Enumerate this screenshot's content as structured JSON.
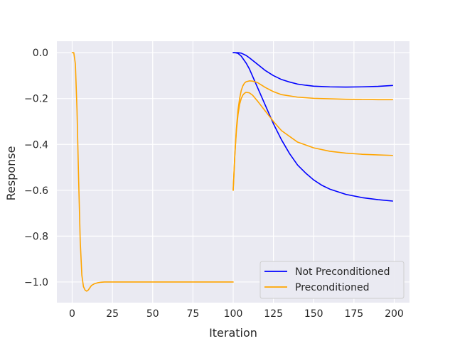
{
  "chart_data": {
    "type": "line",
    "title": "",
    "xlabel": "Iteration",
    "ylabel": "Response",
    "xlim": [
      -9.5,
      209.5
    ],
    "ylim": [
      -1.09,
      0.05
    ],
    "xticks": [
      0,
      25,
      50,
      75,
      100,
      125,
      150,
      175,
      200
    ],
    "xtick_labels": [
      "0",
      "25",
      "50",
      "75",
      "100",
      "125",
      "150",
      "175",
      "200"
    ],
    "yticks": [
      0.0,
      -0.2,
      -0.4,
      -0.6,
      -0.8,
      -1.0
    ],
    "ytick_labels": [
      "0.0",
      "−0.2",
      "−0.4",
      "−0.6",
      "−0.8",
      "−1.0"
    ],
    "grid": true,
    "legend_position": "lower-right",
    "colors": {
      "not_preconditioned": "#0000ff",
      "preconditioned": "#ffa500",
      "background": "#eaeaf2",
      "grid": "#ffffff"
    },
    "legend": [
      {
        "label": "Not Preconditioned",
        "color": "#0000ff"
      },
      {
        "label": "Preconditioned",
        "color": "#ffa500"
      }
    ],
    "series": [
      {
        "group": "Preconditioned",
        "color": "#ffa500",
        "x": [
          0,
          1,
          2,
          3,
          4,
          5,
          6,
          7,
          8,
          9,
          10,
          11,
          12,
          14,
          16,
          18,
          20,
          25,
          30,
          50,
          75,
          100
        ],
        "y": [
          0.0,
          0.0,
          -0.05,
          -0.25,
          -0.55,
          -0.82,
          -0.97,
          -1.02,
          -1.035,
          -1.04,
          -1.035,
          -1.025,
          -1.015,
          -1.007,
          -1.003,
          -1.001,
          -1.0,
          -1.0,
          -1.0,
          -1.0,
          -1.0,
          -1.0
        ]
      },
      {
        "group": "Not Preconditioned",
        "color": "#0000ff",
        "x": [
          100,
          101,
          103,
          105,
          108,
          110,
          115,
          120,
          125,
          130,
          135,
          140,
          145,
          150,
          160,
          170,
          180,
          190,
          199
        ],
        "y": [
          0.0,
          0.0,
          0.0,
          -0.002,
          -0.012,
          -0.022,
          -0.05,
          -0.078,
          -0.1,
          -0.117,
          -0.128,
          -0.137,
          -0.142,
          -0.146,
          -0.149,
          -0.15,
          -0.149,
          -0.147,
          -0.143
        ]
      },
      {
        "group": "Not Preconditioned",
        "color": "#0000ff",
        "x": [
          100,
          101,
          103,
          105,
          108,
          110,
          115,
          120,
          125,
          130,
          135,
          140,
          145,
          150,
          155,
          160,
          170,
          180,
          190,
          199
        ],
        "y": [
          0.0,
          0.0,
          -0.003,
          -0.015,
          -0.045,
          -0.07,
          -0.15,
          -0.23,
          -0.31,
          -0.38,
          -0.44,
          -0.49,
          -0.525,
          -0.555,
          -0.578,
          -0.595,
          -0.618,
          -0.632,
          -0.641,
          -0.647
        ]
      },
      {
        "group": "Preconditioned",
        "color": "#ffa500",
        "x": [
          100,
          101,
          102,
          103,
          104,
          105,
          106,
          107,
          108,
          110,
          112,
          115,
          120,
          125,
          130,
          140,
          150,
          160,
          170,
          180,
          190,
          199
        ],
        "y": [
          -0.6,
          -0.45,
          -0.33,
          -0.25,
          -0.2,
          -0.165,
          -0.145,
          -0.133,
          -0.127,
          -0.123,
          -0.124,
          -0.13,
          -0.152,
          -0.17,
          -0.183,
          -0.194,
          -0.199,
          -0.201,
          -0.203,
          -0.204,
          -0.205,
          -0.205
        ]
      },
      {
        "group": "Preconditioned",
        "color": "#ffa500",
        "x": [
          100,
          101,
          102,
          103,
          104,
          105,
          106,
          107,
          108,
          110,
          112,
          115,
          120,
          125,
          130,
          140,
          150,
          160,
          170,
          180,
          190,
          199
        ],
        "y": [
          -0.6,
          -0.45,
          -0.34,
          -0.27,
          -0.225,
          -0.2,
          -0.185,
          -0.177,
          -0.173,
          -0.175,
          -0.185,
          -0.21,
          -0.255,
          -0.3,
          -0.34,
          -0.39,
          -0.415,
          -0.43,
          -0.438,
          -0.443,
          -0.446,
          -0.448
        ]
      }
    ]
  }
}
